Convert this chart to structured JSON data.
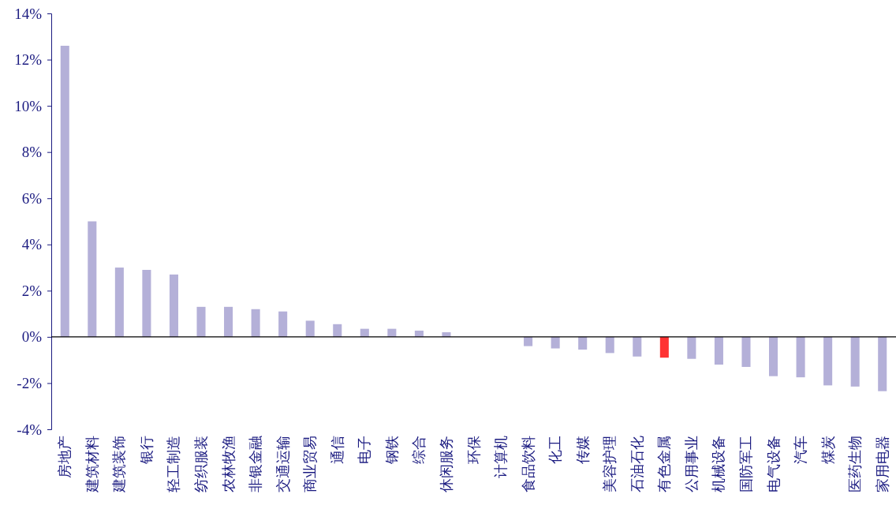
{
  "chart_data": {
    "type": "bar",
    "categories": [
      "房地产",
      "建筑材料",
      "建筑装饰",
      "银行",
      "轻工制造",
      "纺织服装",
      "农林牧渔",
      "非银金融",
      "交通运输",
      "商业贸易",
      "通信",
      "电子",
      "钢铁",
      "综合",
      "休闲服务",
      "环保",
      "计算机",
      "食品饮料",
      "化工",
      "传媒",
      "美容护理",
      "石油石化",
      "有色金属",
      "公用事业",
      "机械设备",
      "国防军工",
      "电气设备",
      "汽车",
      "煤炭",
      "医药生物",
      "家用电器"
    ],
    "values": [
      12.6,
      5.0,
      3.0,
      2.9,
      2.7,
      1.3,
      1.3,
      1.2,
      1.1,
      0.7,
      0.55,
      0.35,
      0.35,
      0.27,
      0.2,
      0.0,
      0.0,
      -0.4,
      -0.5,
      -0.55,
      -0.7,
      -0.85,
      -0.9,
      -0.95,
      -1.2,
      -1.3,
      -1.7,
      -1.75,
      -2.1,
      -2.15,
      -2.35
    ],
    "colors": [
      "#b4b0d8",
      "#b4b0d8",
      "#b4b0d8",
      "#b4b0d8",
      "#b4b0d8",
      "#b4b0d8",
      "#b4b0d8",
      "#b4b0d8",
      "#b4b0d8",
      "#b4b0d8",
      "#b4b0d8",
      "#b4b0d8",
      "#b4b0d8",
      "#b4b0d8",
      "#b4b0d8",
      "#b4b0d8",
      "#b4b0d8",
      "#b4b0d8",
      "#b4b0d8",
      "#b4b0d8",
      "#b4b0d8",
      "#b4b0d8",
      "#ff3333",
      "#b4b0d8",
      "#b4b0d8",
      "#b4b0d8",
      "#b4b0d8",
      "#b4b0d8",
      "#b4b0d8",
      "#b4b0d8",
      "#b4b0d8"
    ],
    "ylim": [
      -4,
      14
    ],
    "yticks": [
      {
        "value": -4,
        "label": "-4%"
      },
      {
        "value": -2,
        "label": "-2%"
      },
      {
        "value": 0,
        "label": "0%"
      },
      {
        "value": 2,
        "label": "2%"
      },
      {
        "value": 4,
        "label": "4%"
      },
      {
        "value": 6,
        "label": "6%"
      },
      {
        "value": 8,
        "label": "8%"
      },
      {
        "value": 10,
        "label": "10%"
      },
      {
        "value": 12,
        "label": "12%"
      },
      {
        "value": 14,
        "label": "14%"
      }
    ],
    "tick_labels": true
  }
}
